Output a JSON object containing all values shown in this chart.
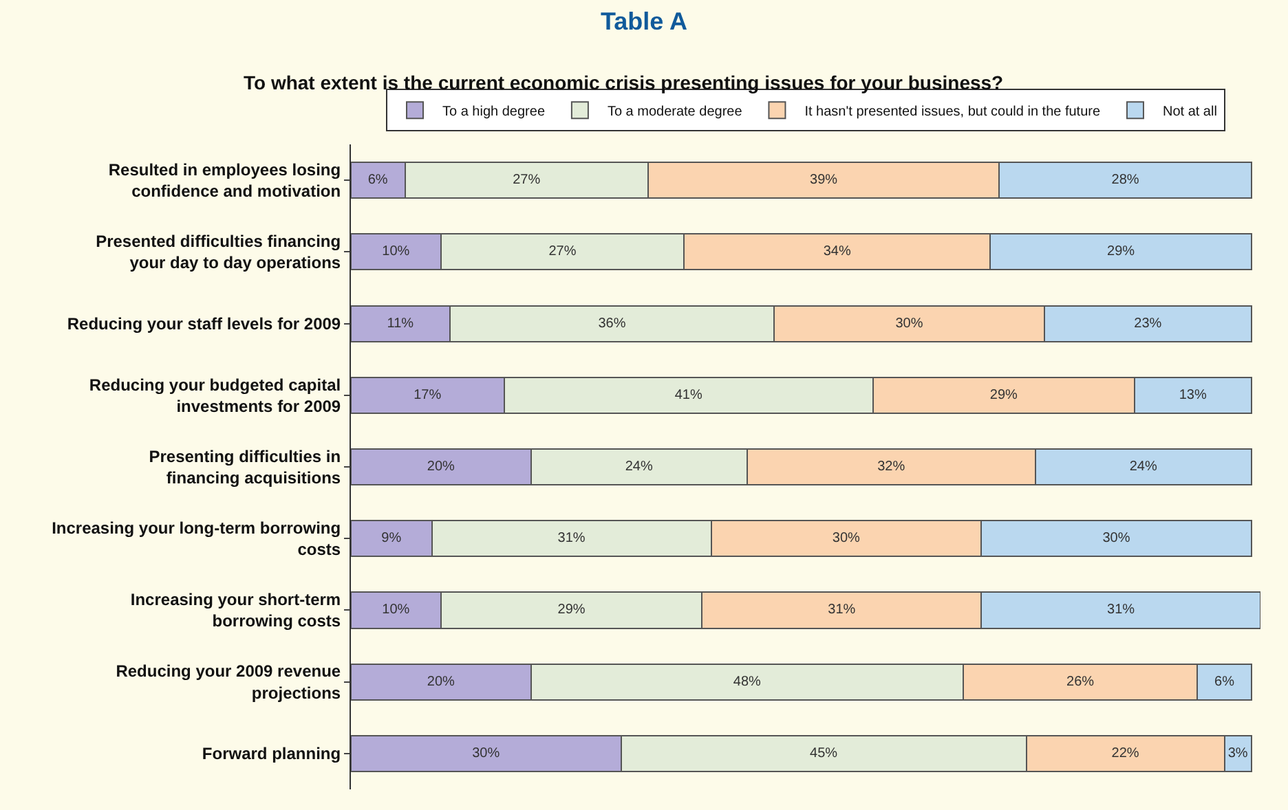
{
  "chart_data": {
    "type": "bar",
    "orientation": "horizontal",
    "stacked": true,
    "title": "Table A",
    "subtitle": "To what extent is the current economic crisis presenting issues for your business?",
    "legend": "top",
    "categories": [
      "Resulted in employees losing confidence and motivation",
      "Presented difficulties financing your day to day operations",
      "Reducing your staff levels for 2009",
      "Reducing your budgeted capital investments for 2009",
      "Presenting difficulties in financing acquisitions",
      "Increasing your long-term borrowing costs",
      "Increasing your short-term borrowing costs",
      "Reducing your 2009 revenue projections",
      "Forward planning"
    ],
    "series": [
      {
        "name": "To a high degree",
        "color": "#b4acd8",
        "values": [
          6,
          10,
          11,
          17,
          20,
          9,
          10,
          20,
          30
        ],
        "value_labels": [
          "6%",
          "10%",
          "11%",
          "17%",
          "20%",
          "9%",
          "10%",
          "20%",
          "30%"
        ]
      },
      {
        "name": "To a moderate degree",
        "color": "#e3ecd9",
        "values": [
          27,
          27,
          36,
          41,
          24,
          31,
          29,
          48,
          45
        ],
        "value_labels": [
          "27%",
          "27%",
          "36%",
          "41%",
          "24%",
          "31%",
          "29%",
          "48%",
          "45%"
        ]
      },
      {
        "name": "It hasn't presented issues, but could in the future",
        "color": "#fbd4b0",
        "values": [
          39,
          34,
          30,
          29,
          32,
          30,
          31,
          26,
          22
        ],
        "value_labels": [
          "39%",
          "34%",
          "30%",
          "29%",
          "32%",
          "30%",
          "31%",
          "26%",
          "22%"
        ]
      },
      {
        "name": "Not at all",
        "color": "#bad8ef",
        "values": [
          28,
          29,
          23,
          13,
          24,
          30,
          31,
          6,
          3
        ],
        "value_labels": [
          "28%",
          "29%",
          "23%",
          "13%",
          "24%",
          "30%",
          "31%",
          "6%",
          "3%"
        ]
      }
    ]
  }
}
